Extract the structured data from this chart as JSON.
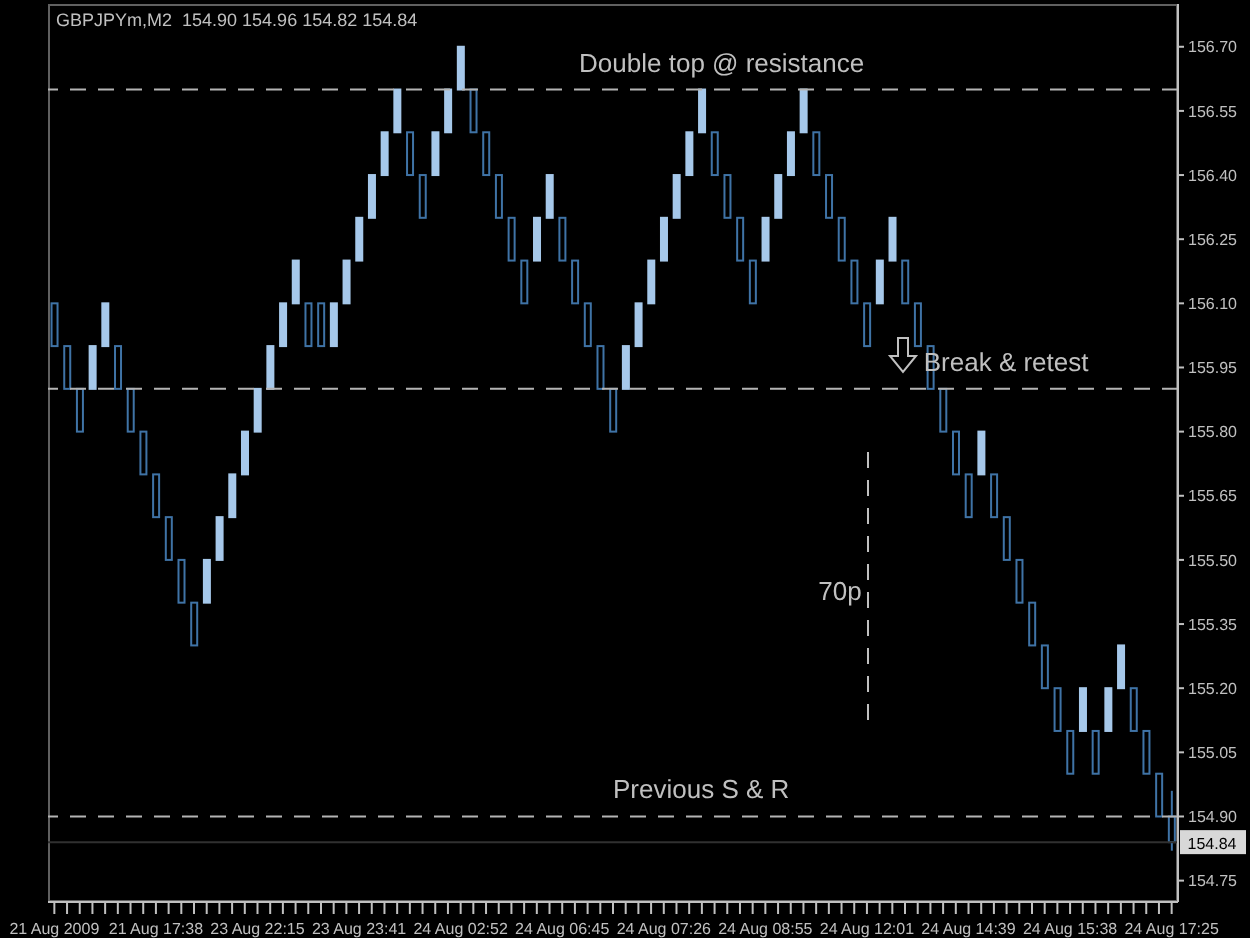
{
  "chart_data": {
    "type": "candlestick",
    "title": "GBPJPYm,M2  154.90 154.96 154.82 154.84",
    "categories": [
      "21 Aug 2009",
      null,
      null,
      null,
      null,
      null,
      null,
      null,
      "21 Aug 17:38",
      null,
      null,
      null,
      null,
      null,
      null,
      null,
      "23 Aug 22:15",
      null,
      null,
      null,
      null,
      null,
      null,
      null,
      "23 Aug 23:41",
      null,
      null,
      null,
      null,
      null,
      null,
      null,
      "24 Aug 02:52",
      null,
      null,
      null,
      null,
      null,
      null,
      null,
      "24 Aug 06:45",
      null,
      null,
      null,
      null,
      null,
      null,
      null,
      "24 Aug 07:26",
      null,
      null,
      null,
      null,
      null,
      null,
      null,
      "24 Aug 08:55",
      null,
      null,
      null,
      null,
      null,
      null,
      null,
      "24 Aug 12:01",
      null,
      null,
      null,
      null,
      null,
      null,
      null,
      "24 Aug 14:39",
      null,
      null,
      null,
      null,
      null,
      null,
      null,
      "24 Aug 15:38",
      null,
      null,
      null,
      null,
      null,
      null,
      null,
      "24 Aug 17:25"
    ],
    "ohlc": [
      [
        156.1,
        156.1,
        156.0,
        156.0
      ],
      [
        156.0,
        156.0,
        155.9,
        155.9
      ],
      [
        155.9,
        155.9,
        155.8,
        155.8
      ],
      [
        155.9,
        156.0,
        155.9,
        156.0
      ],
      [
        156.0,
        156.1,
        156.0,
        156.1
      ],
      [
        156.0,
        156.0,
        155.9,
        155.9
      ],
      [
        155.9,
        155.9,
        155.8,
        155.8
      ],
      [
        155.8,
        155.8,
        155.7,
        155.7
      ],
      [
        155.7,
        155.7,
        155.6,
        155.6
      ],
      [
        155.6,
        155.6,
        155.5,
        155.5
      ],
      [
        155.5,
        155.5,
        155.4,
        155.4
      ],
      [
        155.4,
        155.4,
        155.3,
        155.3
      ],
      [
        155.4,
        155.5,
        155.4,
        155.5
      ],
      [
        155.5,
        155.6,
        155.5,
        155.6
      ],
      [
        155.6,
        155.7,
        155.6,
        155.7
      ],
      [
        155.7,
        155.8,
        155.7,
        155.8
      ],
      [
        155.8,
        155.9,
        155.8,
        155.9
      ],
      [
        155.9,
        156.0,
        155.9,
        156.0
      ],
      [
        156.0,
        156.1,
        156.0,
        156.1
      ],
      [
        156.1,
        156.2,
        156.1,
        156.2
      ],
      [
        156.1,
        156.1,
        156.0,
        156.0
      ],
      [
        156.1,
        156.1,
        156.0,
        156.0
      ],
      [
        156.0,
        156.1,
        156.0,
        156.1
      ],
      [
        156.1,
        156.2,
        156.1,
        156.2
      ],
      [
        156.2,
        156.3,
        156.2,
        156.3
      ],
      [
        156.3,
        156.4,
        156.3,
        156.4
      ],
      [
        156.4,
        156.5,
        156.4,
        156.5
      ],
      [
        156.5,
        156.6,
        156.5,
        156.6
      ],
      [
        156.5,
        156.5,
        156.4,
        156.4
      ],
      [
        156.4,
        156.4,
        156.3,
        156.3
      ],
      [
        156.4,
        156.5,
        156.4,
        156.5
      ],
      [
        156.5,
        156.6,
        156.5,
        156.6
      ],
      [
        156.6,
        156.7,
        156.6,
        156.7
      ],
      [
        156.6,
        156.6,
        156.5,
        156.5
      ],
      [
        156.5,
        156.5,
        156.4,
        156.4
      ],
      [
        156.4,
        156.4,
        156.3,
        156.3
      ],
      [
        156.3,
        156.3,
        156.2,
        156.2
      ],
      [
        156.2,
        156.2,
        156.1,
        156.1
      ],
      [
        156.2,
        156.3,
        156.2,
        156.3
      ],
      [
        156.3,
        156.4,
        156.3,
        156.4
      ],
      [
        156.3,
        156.3,
        156.2,
        156.2
      ],
      [
        156.2,
        156.2,
        156.1,
        156.1
      ],
      [
        156.1,
        156.1,
        156.0,
        156.0
      ],
      [
        156.0,
        156.0,
        155.9,
        155.9
      ],
      [
        155.9,
        155.9,
        155.8,
        155.8
      ],
      [
        155.9,
        156.0,
        155.9,
        156.0
      ],
      [
        156.0,
        156.1,
        156.0,
        156.1
      ],
      [
        156.1,
        156.2,
        156.1,
        156.2
      ],
      [
        156.2,
        156.3,
        156.2,
        156.3
      ],
      [
        156.3,
        156.4,
        156.3,
        156.4
      ],
      [
        156.4,
        156.5,
        156.4,
        156.5
      ],
      [
        156.5,
        156.6,
        156.5,
        156.6
      ],
      [
        156.5,
        156.5,
        156.4,
        156.4
      ],
      [
        156.4,
        156.4,
        156.3,
        156.3
      ],
      [
        156.3,
        156.3,
        156.2,
        156.2
      ],
      [
        156.2,
        156.2,
        156.1,
        156.1
      ],
      [
        156.2,
        156.3,
        156.2,
        156.3
      ],
      [
        156.3,
        156.4,
        156.3,
        156.4
      ],
      [
        156.4,
        156.5,
        156.4,
        156.5
      ],
      [
        156.5,
        156.6,
        156.5,
        156.6
      ],
      [
        156.5,
        156.5,
        156.4,
        156.4
      ],
      [
        156.4,
        156.4,
        156.3,
        156.3
      ],
      [
        156.3,
        156.3,
        156.2,
        156.2
      ],
      [
        156.2,
        156.2,
        156.1,
        156.1
      ],
      [
        156.1,
        156.1,
        156.0,
        156.0
      ],
      [
        156.1,
        156.2,
        156.1,
        156.2
      ],
      [
        156.2,
        156.3,
        156.2,
        156.3
      ],
      [
        156.2,
        156.2,
        156.1,
        156.1
      ],
      [
        156.1,
        156.1,
        156.0,
        156.0
      ],
      [
        156.0,
        156.0,
        155.9,
        155.9
      ],
      [
        155.9,
        155.9,
        155.8,
        155.8
      ],
      [
        155.8,
        155.8,
        155.7,
        155.7
      ],
      [
        155.7,
        155.7,
        155.6,
        155.6
      ],
      [
        155.7,
        155.8,
        155.7,
        155.8
      ],
      [
        155.7,
        155.7,
        155.6,
        155.6
      ],
      [
        155.6,
        155.6,
        155.5,
        155.5
      ],
      [
        155.5,
        155.5,
        155.4,
        155.4
      ],
      [
        155.4,
        155.4,
        155.3,
        155.3
      ],
      [
        155.3,
        155.3,
        155.2,
        155.2
      ],
      [
        155.2,
        155.2,
        155.1,
        155.1
      ],
      [
        155.1,
        155.1,
        155.0,
        155.0
      ],
      [
        155.1,
        155.2,
        155.1,
        155.2
      ],
      [
        155.1,
        155.1,
        155.0,
        155.0
      ],
      [
        155.1,
        155.2,
        155.1,
        155.2
      ],
      [
        155.2,
        155.3,
        155.2,
        155.3
      ],
      [
        155.2,
        155.2,
        155.1,
        155.1
      ],
      [
        155.1,
        155.1,
        155.0,
        155.0
      ],
      [
        155.0,
        155.0,
        154.9,
        154.9
      ],
      [
        154.9,
        154.96,
        154.82,
        154.84
      ]
    ],
    "colors": [
      "#3f73a6",
      "#3f73a6",
      "#3f73a6",
      "#a6c8ea",
      "#a6c8ea",
      "#3f73a6",
      "#3f73a6",
      "#3f73a6",
      "#3f73a6",
      "#3f73a6",
      "#3f73a6",
      "#3f73a6",
      "#a6c8ea",
      "#a6c8ea",
      "#a6c8ea",
      "#a6c8ea",
      "#a6c8ea",
      "#a6c8ea",
      "#a6c8ea",
      "#a6c8ea",
      "#3f73a6",
      "#3f73a6",
      "#a6c8ea",
      "#a6c8ea",
      "#a6c8ea",
      "#a6c8ea",
      "#a6c8ea",
      "#a6c8ea",
      "#3f73a6",
      "#3f73a6",
      "#a6c8ea",
      "#a6c8ea",
      "#a6c8ea",
      "#3f73a6",
      "#3f73a6",
      "#3f73a6",
      "#3f73a6",
      "#3f73a6",
      "#a6c8ea",
      "#a6c8ea",
      "#3f73a6",
      "#3f73a6",
      "#3f73a6",
      "#3f73a6",
      "#3f73a6",
      "#a6c8ea",
      "#a6c8ea",
      "#a6c8ea",
      "#a6c8ea",
      "#a6c8ea",
      "#a6c8ea",
      "#a6c8ea",
      "#3f73a6",
      "#3f73a6",
      "#3f73a6",
      "#3f73a6",
      "#a6c8ea",
      "#a6c8ea",
      "#a6c8ea",
      "#a6c8ea",
      "#3f73a6",
      "#3f73a6",
      "#3f73a6",
      "#3f73a6",
      "#3f73a6",
      "#a6c8ea",
      "#a6c8ea",
      "#3f73a6",
      "#3f73a6",
      "#3f73a6",
      "#3f73a6",
      "#3f73a6",
      "#3f73a6",
      "#a6c8ea",
      "#3f73a6",
      "#3f73a6",
      "#3f73a6",
      "#3f73a6",
      "#3f73a6",
      "#3f73a6",
      "#3f73a6",
      "#a6c8ea",
      "#3f73a6",
      "#a6c8ea",
      "#a6c8ea",
      "#3f73a6",
      "#3f73a6",
      "#3f73a6",
      "#3f73a6"
    ],
    "ylim": [
      154.7,
      156.8
    ],
    "yticks": [
      {
        "value": 156.7,
        "label": "156.70"
      },
      {
        "value": 156.55,
        "label": "156.55"
      },
      {
        "value": 156.4,
        "label": "156.40"
      },
      {
        "value": 156.25,
        "label": "156.25"
      },
      {
        "value": 156.1,
        "label": "156.10"
      },
      {
        "value": 155.95,
        "label": "155.95"
      },
      {
        "value": 155.8,
        "label": "155.80"
      },
      {
        "value": 155.65,
        "label": "155.65"
      },
      {
        "value": 155.5,
        "label": "155.50"
      },
      {
        "value": 155.35,
        "label": "155.35"
      },
      {
        "value": 155.2,
        "label": "155.20"
      },
      {
        "value": 155.05,
        "label": "155.05"
      },
      {
        "value": 154.9,
        "label": "154.90"
      },
      {
        "value": 154.75,
        "label": "154.75"
      }
    ],
    "ref_lines": [
      {
        "axis": "y",
        "value": 156.6,
        "label": "Double top @ resistance",
        "color": "#b4b4b4",
        "line_style": "dashed"
      },
      {
        "axis": "y",
        "value": 155.9,
        "label": "Break & retest",
        "color": "#b4b4b4",
        "line_style": "dashed"
      },
      {
        "axis": "y",
        "value": 154.9,
        "label": "Previous S & R",
        "color": "#b4b4b4",
        "line_style": "dashed"
      },
      {
        "axis": "y",
        "value": 154.84,
        "label": "154.84",
        "color": "#303030",
        "line_style": "solid"
      }
    ],
    "annotations": [
      "70p"
    ]
  }
}
